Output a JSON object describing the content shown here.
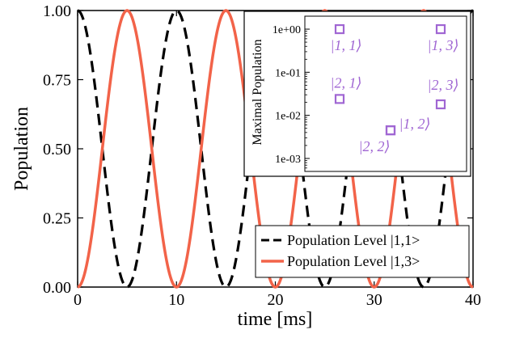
{
  "chart_data": [
    {
      "type": "line",
      "xlabel": "time [ms]",
      "ylabel": "Population",
      "xlim": [
        0,
        40
      ],
      "ylim": [
        0,
        1
      ],
      "x_ticks": [
        "0",
        "10",
        "20",
        "30",
        "40"
      ],
      "y_ticks": [
        "0.00",
        "0.25",
        "0.50",
        "0.75",
        "1.00"
      ],
      "grid": false,
      "legend_position": "bottom-right",
      "series": [
        {
          "name": "Population Level |1,1>",
          "color": "#000000",
          "style": "dashed",
          "period_ms": 10,
          "x": [
            0,
            1,
            2,
            3,
            4,
            5,
            6,
            7,
            8,
            9,
            10,
            11,
            12,
            13,
            14,
            15,
            16,
            17,
            18,
            19,
            20,
            21,
            22,
            23,
            24,
            25,
            26,
            27,
            28,
            29,
            30,
            31,
            32,
            33,
            34,
            35,
            36,
            37,
            38,
            39,
            40
          ],
          "values": [
            1.0,
            0.9,
            0.65,
            0.35,
            0.1,
            0.0,
            0.1,
            0.35,
            0.65,
            0.9,
            1.0,
            0.9,
            0.65,
            0.35,
            0.1,
            0.0,
            0.1,
            0.35,
            0.65,
            0.9,
            1.0,
            0.9,
            0.65,
            0.35,
            0.1,
            0.0,
            0.1,
            0.35,
            0.65,
            0.9,
            1.0,
            0.9,
            0.65,
            0.35,
            0.1,
            0.0,
            0.1,
            0.35,
            0.65,
            0.9,
            1.0
          ]
        },
        {
          "name": "Population Level |1,3>",
          "color": "#f26349",
          "style": "solid",
          "period_ms": 10,
          "x": [
            0,
            1,
            2,
            3,
            4,
            5,
            6,
            7,
            8,
            9,
            10,
            11,
            12,
            13,
            14,
            15,
            16,
            17,
            18,
            19,
            20,
            21,
            22,
            23,
            24,
            25,
            26,
            27,
            28,
            29,
            30,
            31,
            32,
            33,
            34,
            35,
            36,
            37,
            38,
            39,
            40
          ],
          "values": [
            0.0,
            0.1,
            0.35,
            0.65,
            0.9,
            1.0,
            0.9,
            0.65,
            0.35,
            0.1,
            0.0,
            0.1,
            0.35,
            0.65,
            0.9,
            1.0,
            0.9,
            0.65,
            0.35,
            0.1,
            0.0,
            0.1,
            0.35,
            0.65,
            0.9,
            1.0,
            0.9,
            0.65,
            0.35,
            0.1,
            0.0,
            0.1,
            0.35,
            0.65,
            0.9,
            1.0,
            0.9,
            0.65,
            0.35,
            0.1,
            0.0
          ]
        }
      ]
    },
    {
      "type": "scatter",
      "ylabel": "Maximal Population",
      "yscale": "log",
      "ylim": [
        0.0005,
        2
      ],
      "y_ticks": [
        "1e+00",
        "1e-01",
        "1e-02",
        "1e-03"
      ],
      "marker": "square",
      "color": "#a066d3",
      "points": [
        {
          "label": "|1, 1⟩",
          "group": "left",
          "value": 1.0
        },
        {
          "label": "|2, 1⟩",
          "group": "left",
          "value": 0.024
        },
        {
          "label": "|2, 2⟩",
          "group": "middle",
          "value": 0.0045
        },
        {
          "label": "|1, 2⟩",
          "group": "middle",
          "value": 0.0045
        },
        {
          "label": "|1, 3⟩",
          "group": "right",
          "value": 1.0
        },
        {
          "label": "|2, 3⟩",
          "group": "right",
          "value": 0.018
        }
      ]
    }
  ]
}
